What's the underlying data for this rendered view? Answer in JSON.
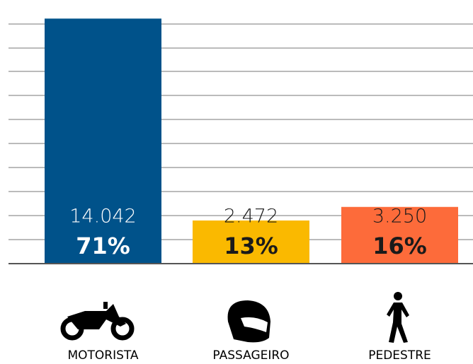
{
  "chart_data": {
    "type": "bar",
    "categories": [
      "MOTORISTA",
      "PASSAGEIRO",
      "PEDESTRE"
    ],
    "values": [
      14042,
      2472,
      3250
    ],
    "value_labels": [
      "14.042",
      "2.472",
      "3.250"
    ],
    "share_labels": [
      "71%",
      "13%",
      "16%"
    ],
    "colors": [
      "#00528a",
      "#fab900",
      "#fd6b3a"
    ],
    "label_colors": [
      "#ffffff",
      "#1a1a1a",
      "#1a1a1a"
    ],
    "ylim": [
      0,
      14500
    ]
  }
}
